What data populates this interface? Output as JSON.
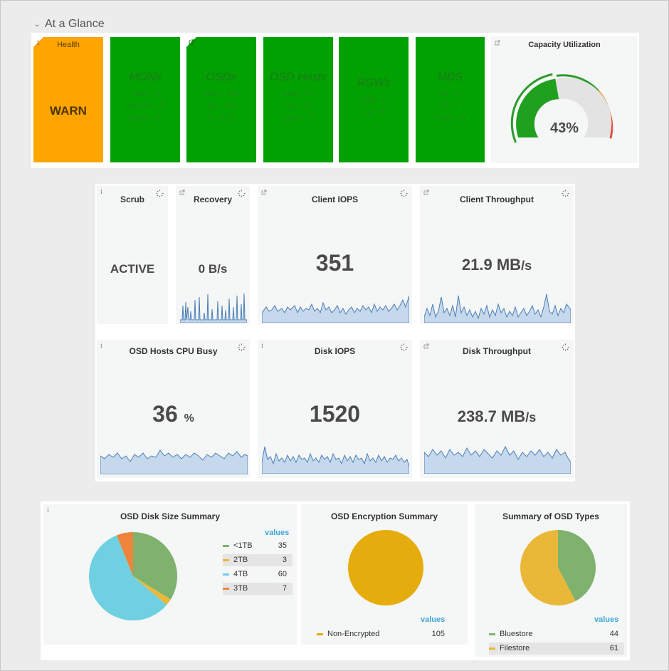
{
  "section": {
    "title": "At a Glance"
  },
  "health": {
    "title": "Health",
    "value": "WARN"
  },
  "mons": {
    "title": "MONs",
    "lines": [
      "total - 3",
      "quorum - 3",
      "down - 0"
    ]
  },
  "osds": {
    "title": "OSDs",
    "lines": [
      "total - 105",
      "up - 105",
      "in - 105"
    ]
  },
  "osd_hosts": {
    "title": "OSD Hosts",
    "lines": [
      "total - 15",
      "up - 15",
      "down - 0"
    ]
  },
  "rgws": {
    "title": "RGWs",
    "lines": [
      "total - 0",
      "up - 0"
    ]
  },
  "mds": {
    "title": "MDS",
    "lines": [
      "up - 1",
      "in - 1",
      "down - 0"
    ]
  },
  "capacity": {
    "title": "Capacity Utilization",
    "value_label": "43%",
    "value": 43
  },
  "scrub": {
    "title": "Scrub",
    "value": "ACTIVE"
  },
  "recovery": {
    "title": "Recovery",
    "value": "0 B/s"
  },
  "client_iops": {
    "title": "Client IOPS",
    "value": "351"
  },
  "client_throughput": {
    "title": "Client Throughput",
    "value": "21.9 MB",
    "unit": "/s"
  },
  "cpu_busy": {
    "title": "OSD Hosts CPU Busy",
    "value": "36",
    "unit": "%"
  },
  "disk_iops": {
    "title": "Disk IOPS",
    "value": "1520"
  },
  "disk_throughput": {
    "title": "Disk Throughput",
    "value": "238.7 MB",
    "unit": "/s"
  },
  "disk_size": {
    "title": "OSD Disk Size Summary",
    "legend_header": "values",
    "items": [
      {
        "label": "<1TB",
        "value": "35",
        "color": "#7eb26d"
      },
      {
        "label": "2TB",
        "value": "3",
        "color": "#eab839"
      },
      {
        "label": "4TB",
        "value": "60",
        "color": "#6ed0e0"
      },
      {
        "label": "3TB",
        "value": "7",
        "color": "#ef843c"
      }
    ]
  },
  "encryption": {
    "title": "OSD Encryption Summary",
    "legend_header": "values",
    "items": [
      {
        "label": "Non-Encrypted",
        "value": "105",
        "color": "#e5ac0e"
      }
    ]
  },
  "osd_types": {
    "title": "Summary of OSD Types",
    "legend_header": "values",
    "items": [
      {
        "label": "Bluestore",
        "value": "44",
        "color": "#7eb26d"
      },
      {
        "label": "Filestore",
        "value": "61",
        "color": "#eab839"
      }
    ]
  }
}
